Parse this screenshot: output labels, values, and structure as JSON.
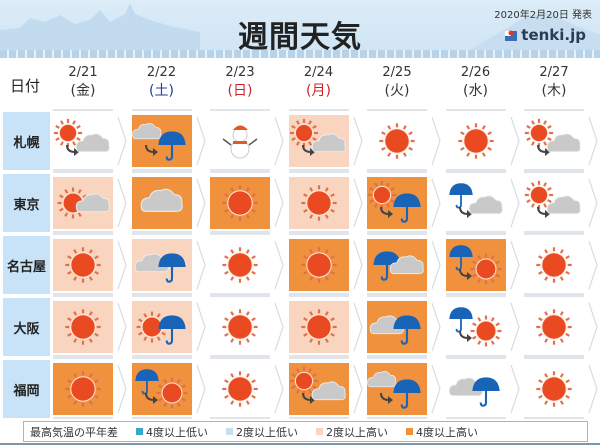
{
  "header": {
    "title": "週間天気",
    "published": "2020年2月20日 発表",
    "logo": "tenki.jp"
  },
  "date_label": "日付",
  "days": [
    {
      "date": "2/21",
      "weekday": "(金)",
      "color": "#333333"
    },
    {
      "date": "2/22",
      "weekday": "(土)",
      "color": "#1c3fa0"
    },
    {
      "date": "2/23",
      "weekday": "(日)",
      "color": "#d0202a"
    },
    {
      "date": "2/24",
      "weekday": "(月)",
      "color": "#d0202a"
    },
    {
      "date": "2/25",
      "weekday": "(火)",
      "color": "#333333"
    },
    {
      "date": "2/26",
      "weekday": "(水)",
      "color": "#333333"
    },
    {
      "date": "2/27",
      "weekday": "(木)",
      "color": "#333333"
    }
  ],
  "anomaly_colors": {
    "low4": "#3aa6c8",
    "low2": "#c7dfee",
    "high2": "#f9d5bf",
    "high4": "#f0913d",
    "none": "#ffffff"
  },
  "cities": [
    {
      "name": "札幌",
      "forecast": [
        {
          "weather": "sun-then-cloud",
          "anomaly": "none"
        },
        {
          "weather": "cloud-then-rain",
          "anomaly": "high4"
        },
        {
          "weather": "snow",
          "anomaly": "none"
        },
        {
          "weather": "sun-then-cloud",
          "anomaly": "high2"
        },
        {
          "weather": "sun",
          "anomaly": "none"
        },
        {
          "weather": "sun",
          "anomaly": "none"
        },
        {
          "weather": "sun-then-cloud",
          "anomaly": "none"
        }
      ]
    },
    {
      "name": "東京",
      "forecast": [
        {
          "weather": "sun-with-cloud",
          "anomaly": "high2"
        },
        {
          "weather": "cloud",
          "anomaly": "high4"
        },
        {
          "weather": "sun",
          "anomaly": "high4"
        },
        {
          "weather": "sun",
          "anomaly": "high2"
        },
        {
          "weather": "sun-then-rain",
          "anomaly": "high4"
        },
        {
          "weather": "rain-then-cloud",
          "anomaly": "none"
        },
        {
          "weather": "sun-then-cloud",
          "anomaly": "none"
        }
      ]
    },
    {
      "name": "名古屋",
      "forecast": [
        {
          "weather": "sun",
          "anomaly": "high2"
        },
        {
          "weather": "cloud-with-rain",
          "anomaly": "high2"
        },
        {
          "weather": "sun",
          "anomaly": "none"
        },
        {
          "weather": "sun",
          "anomaly": "high4"
        },
        {
          "weather": "rain-with-cloud",
          "anomaly": "high4"
        },
        {
          "weather": "rain-then-sun",
          "anomaly": "high4"
        },
        {
          "weather": "sun",
          "anomaly": "none"
        }
      ]
    },
    {
      "name": "大阪",
      "forecast": [
        {
          "weather": "sun",
          "anomaly": "high2"
        },
        {
          "weather": "sun-with-rain",
          "anomaly": "high2"
        },
        {
          "weather": "sun",
          "anomaly": "none"
        },
        {
          "weather": "sun",
          "anomaly": "high2"
        },
        {
          "weather": "cloud-with-rain",
          "anomaly": "high4"
        },
        {
          "weather": "rain-then-sun",
          "anomaly": "none"
        },
        {
          "weather": "sun",
          "anomaly": "none"
        }
      ]
    },
    {
      "name": "福岡",
      "forecast": [
        {
          "weather": "sun",
          "anomaly": "high4"
        },
        {
          "weather": "rain-then-sun",
          "anomaly": "high4"
        },
        {
          "weather": "sun",
          "anomaly": "none"
        },
        {
          "weather": "sun-then-cloud",
          "anomaly": "high4"
        },
        {
          "weather": "cloud-then-rain",
          "anomaly": "high4"
        },
        {
          "weather": "cloud-with-rain",
          "anomaly": "none"
        },
        {
          "weather": "sun",
          "anomaly": "none"
        }
      ]
    }
  ],
  "legend": {
    "title": "最高気温の平年差",
    "items": [
      {
        "key": "low4",
        "label": "4度以上低い"
      },
      {
        "key": "low2",
        "label": "2度以上低い"
      },
      {
        "key": "high2",
        "label": "2度以上高い"
      },
      {
        "key": "high4",
        "label": "4度以上高い"
      }
    ]
  }
}
